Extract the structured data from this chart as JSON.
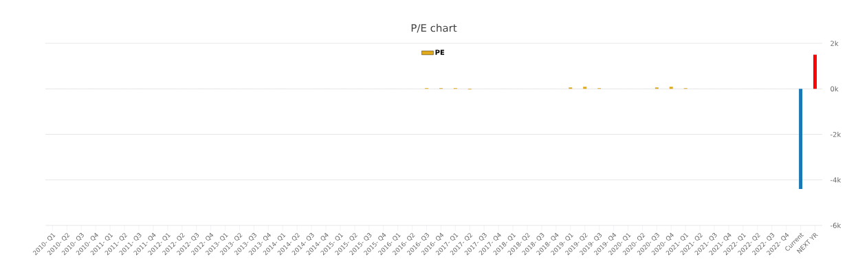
{
  "chart_data": {
    "type": "bar",
    "title": "P/E chart",
    "categories": [
      "2010- Q1",
      "2010- Q2",
      "2010- Q3",
      "2010- Q4",
      "2011- Q1",
      "2011- Q2",
      "2011- Q3",
      "2011- Q4",
      "2012- Q1",
      "2012- Q2",
      "2012- Q3",
      "2012- Q4",
      "2013- Q1",
      "2013- Q2",
      "2013- Q3",
      "2013- Q4",
      "2014- Q1",
      "2014- Q2",
      "2014- Q3",
      "2014- Q4",
      "2015- Q1",
      "2015- Q2",
      "2015- Q3",
      "2015- Q4",
      "2016- Q1",
      "2016- Q2",
      "2016- Q3",
      "2016- Q4",
      "2017- Q1",
      "2017- Q2",
      "2017- Q3",
      "2017- Q4",
      "2018- Q1",
      "2018- Q2",
      "2018- Q3",
      "2018- Q4",
      "2019- Q1",
      "2019- Q2",
      "2019- Q3",
      "2019- Q4",
      "2020- Q1",
      "2020- Q2",
      "2020- Q3",
      "2020- Q4",
      "2021- Q1",
      "2021- Q2",
      "2021- Q3",
      "2021- Q4",
      "2022- Q1",
      "2022- Q2",
      "2022- Q3",
      "2022- Q4",
      "Current",
      "NEXT YR"
    ],
    "series": [
      {
        "name": "PE",
        "color": "#e0a91b",
        "values": [
          null,
          null,
          null,
          null,
          null,
          null,
          null,
          null,
          null,
          null,
          null,
          null,
          null,
          null,
          null,
          null,
          null,
          null,
          null,
          null,
          null,
          null,
          null,
          null,
          null,
          null,
          30,
          30,
          30,
          -30,
          null,
          null,
          null,
          null,
          null,
          null,
          60,
          90,
          30,
          null,
          null,
          null,
          60,
          90,
          30,
          null,
          null,
          null,
          null,
          null,
          null,
          null,
          -4400,
          1500
        ],
        "colors": [
          "#e0a91b",
          "#e0a91b",
          "#e0a91b",
          "#e0a91b",
          "#e0a91b",
          "#e0a91b",
          "#e0a91b",
          "#e0a91b",
          "#e0a91b",
          "#e0a91b",
          "#e0a91b",
          "#e0a91b",
          "#e0a91b",
          "#e0a91b",
          "#e0a91b",
          "#e0a91b",
          "#e0a91b",
          "#e0a91b",
          "#e0a91b",
          "#e0a91b",
          "#e0a91b",
          "#e0a91b",
          "#e0a91b",
          "#e0a91b",
          "#e0a91b",
          "#e0a91b",
          "#e0a91b",
          "#e0a91b",
          "#e0a91b",
          "#e0a91b",
          "#e0a91b",
          "#e0a91b",
          "#e0a91b",
          "#e0a91b",
          "#e0a91b",
          "#e0a91b",
          "#e0a91b",
          "#e0a91b",
          "#e0a91b",
          "#e0a91b",
          "#e0a91b",
          "#e0a91b",
          "#e0a91b",
          "#e0a91b",
          "#e0a91b",
          "#e0a91b",
          "#e0a91b",
          "#e0a91b",
          "#e0a91b",
          "#e0a91b",
          "#e0a91b",
          "#e0a91b",
          "#1a78b4",
          "#ff0000"
        ]
      }
    ],
    "ylim": [
      -6000,
      2000
    ],
    "yticks": [
      {
        "value": -6000,
        "label": "-6k"
      },
      {
        "value": -4000,
        "label": "-4k"
      },
      {
        "value": -2000,
        "label": "-2k"
      },
      {
        "value": 0,
        "label": "0k"
      },
      {
        "value": 2000,
        "label": "2k"
      }
    ],
    "grid": "y",
    "legend": "top",
    "ref_lines": [
      {
        "axis": "y",
        "value": 0,
        "color": "#c8c8c8",
        "line_style": "dotted"
      }
    ]
  }
}
